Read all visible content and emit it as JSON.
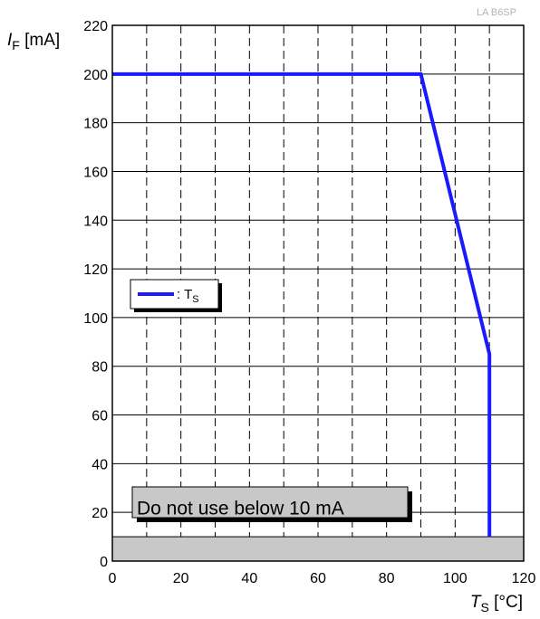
{
  "chart_data": {
    "type": "line",
    "watermark": "LA B6SP",
    "ylabel": {
      "var": "I",
      "sub": "F",
      "unit": " [mA]"
    },
    "xlabel": {
      "var": "T",
      "sub": "S",
      "unit": " [°C]"
    },
    "xlim": [
      0,
      120
    ],
    "ylim": [
      0,
      220
    ],
    "x_ticks": [
      0,
      20,
      40,
      60,
      80,
      100,
      120
    ],
    "y_ticks": [
      0,
      20,
      40,
      60,
      80,
      100,
      120,
      140,
      160,
      180,
      200,
      220
    ],
    "grid": "dashed vertical every 10, solid horizontal every 20",
    "series": [
      {
        "name": ": T",
        "name_sub": "S",
        "color": "#1a1aff",
        "x": [
          0,
          90,
          110,
          110
        ],
        "y": [
          200,
          200,
          85,
          10
        ]
      }
    ],
    "legend_position": "left-middle",
    "forbidden_band": {
      "y": [
        0,
        10
      ],
      "color": "#c8c8c8"
    },
    "annotation": "Do not use below 10 mA"
  }
}
